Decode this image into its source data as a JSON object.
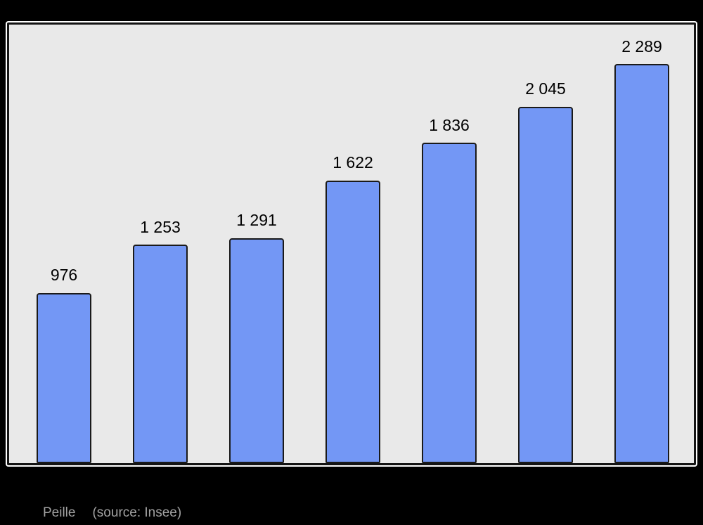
{
  "figure": {
    "background": "#000000",
    "panel_background": "#E9E9E9",
    "panel_border_color": "#141414",
    "panel_outline_color": "#FFFFFF"
  },
  "chart_data": {
    "type": "bar",
    "title": "",
    "xlabel": "",
    "ylabel": "",
    "values": [
      976,
      1253,
      1291,
      1622,
      1836,
      2045,
      2289
    ],
    "value_labels": [
      "976",
      "1 253",
      "1 291",
      "1 622",
      "1 836",
      "2 045",
      "2 289"
    ],
    "ylim": [
      0,
      2515
    ],
    "grid": false,
    "legend": false,
    "bar_color": "#7397F5",
    "bar_border_color": "#1A1A1A",
    "value_label_color": "#000000"
  },
  "caption": {
    "commune": "Peille",
    "source": "(source: Insee)",
    "color": "#A2A2A2"
  }
}
